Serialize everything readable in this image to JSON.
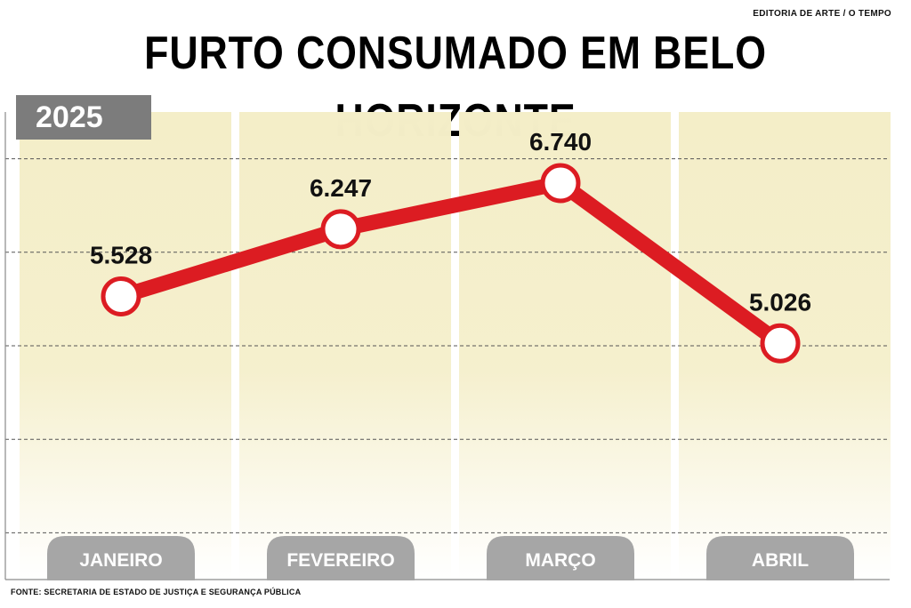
{
  "header": {
    "credit": "EDITORIA DE ARTE / O TEMPO",
    "title": "FURTO CONSUMADO EM BELO HORIZONTE",
    "year": "2025"
  },
  "footer": {
    "source": "FONTE: SECRETARIA DE ESTADO DE JUSTIÇA E SEGURANÇA PÚBLICA"
  },
  "colors": {
    "line": "#dc1c22",
    "panel": "#f4eec8",
    "pill": "#a6a6a6",
    "badge": "#7c7c7c"
  },
  "chart_data": {
    "type": "line",
    "categories": [
      "JANEIRO",
      "FEVEREIRO",
      "MARÇO",
      "ABRIL"
    ],
    "values": [
      5528,
      6247,
      6740,
      5026
    ],
    "value_labels": [
      "5.528",
      "6.247",
      "6.740",
      "5.026"
    ],
    "ylim": [
      2500,
      7500
    ],
    "grid": true,
    "legend": "none"
  }
}
